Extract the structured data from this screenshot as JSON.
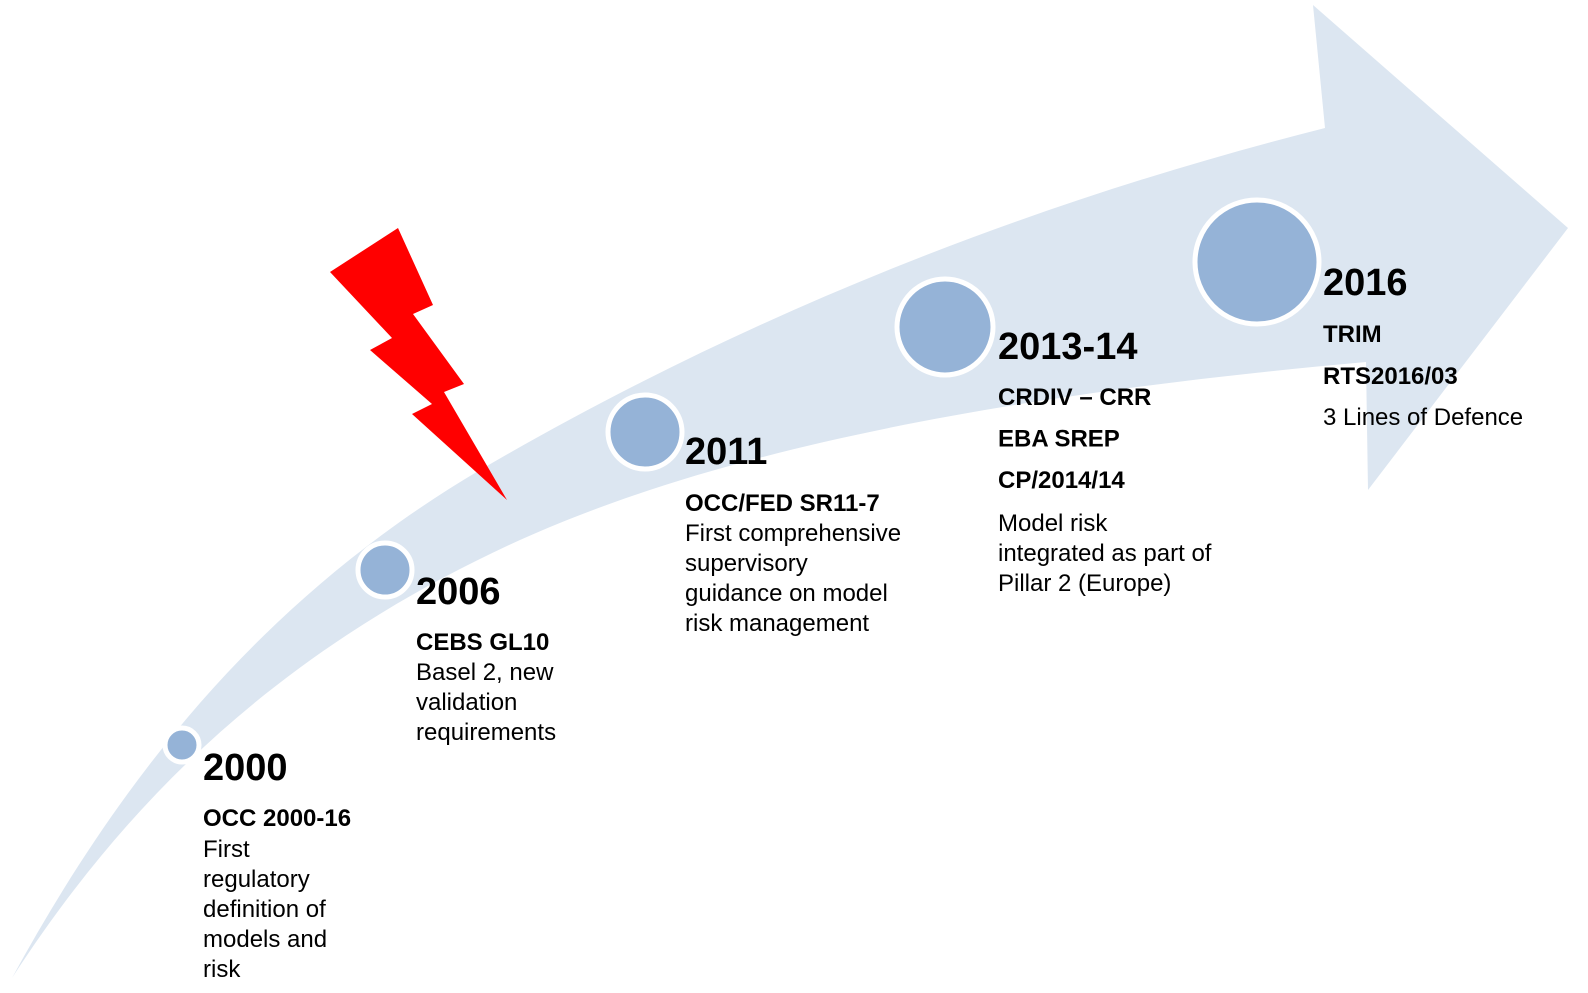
{
  "milestones": [
    {
      "year": "2000",
      "bold": [
        "OCC 2000-16"
      ],
      "text": [
        "First",
        "regulatory",
        "definition of",
        "models and",
        "risk"
      ]
    },
    {
      "year": "2006",
      "bold": [
        "CEBS GL10"
      ],
      "text": [
        "Basel 2, new",
        "validation",
        "requirements"
      ]
    },
    {
      "year": "2011",
      "bold": [
        "OCC/FED SR11-7"
      ],
      "text": [
        "First comprehensive",
        "supervisory",
        "guidance on model",
        "risk management"
      ]
    },
    {
      "year": "2013-14",
      "bold": [
        "CRDIV – CRR",
        "EBA SREP",
        "CP/2014/14"
      ],
      "text": [
        "Model risk",
        "integrated as part of",
        "Pillar 2 (Europe)"
      ]
    },
    {
      "year": "2016",
      "bold": [
        "TRIM",
        "RTS2016/03"
      ],
      "text": [
        "3 Lines of Defence"
      ]
    }
  ]
}
